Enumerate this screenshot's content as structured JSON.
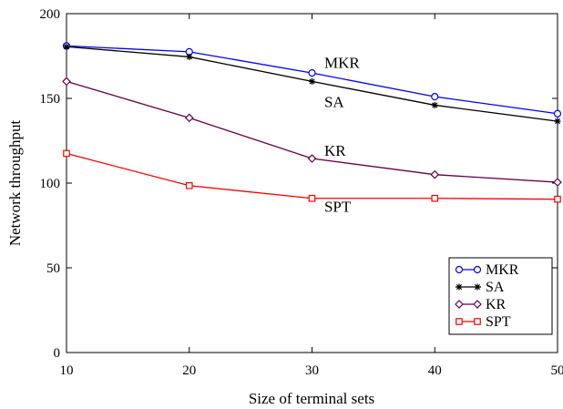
{
  "chart_data": {
    "type": "line",
    "title": "",
    "xlabel": "Size of terminal sets",
    "ylabel": "Network throughput",
    "x": [
      10,
      20,
      30,
      40,
      50
    ],
    "xlim": [
      10,
      50
    ],
    "ylim": [
      0,
      200
    ],
    "xticks": [
      10,
      20,
      30,
      40,
      50
    ],
    "yticks": [
      0,
      50,
      100,
      150,
      200
    ],
    "grid": false,
    "legend_position": "bottom-right",
    "series": [
      {
        "name": "MKR",
        "values": [
          181,
          177.5,
          165,
          151,
          141
        ],
        "color": "#0000ff",
        "marker": "circle"
      },
      {
        "name": "SA",
        "values": [
          180.5,
          174.5,
          160,
          146,
          136.5
        ],
        "color": "#000000",
        "marker": "asterisk"
      },
      {
        "name": "KR",
        "values": [
          160,
          138.5,
          114.5,
          105,
          100.5
        ],
        "color": "#660044",
        "marker": "diamond"
      },
      {
        "name": "SPT",
        "values": [
          117.5,
          98.5,
          91,
          91,
          90.5
        ],
        "color": "#ff0000",
        "marker": "square"
      }
    ],
    "annotations": [
      {
        "text": "MKR",
        "x": 31,
        "y": 168
      },
      {
        "text": "SA",
        "x": 31,
        "y": 145
      },
      {
        "text": "KR",
        "x": 31,
        "y": 116
      },
      {
        "text": "SPT",
        "x": 31,
        "y": 83
      }
    ]
  }
}
